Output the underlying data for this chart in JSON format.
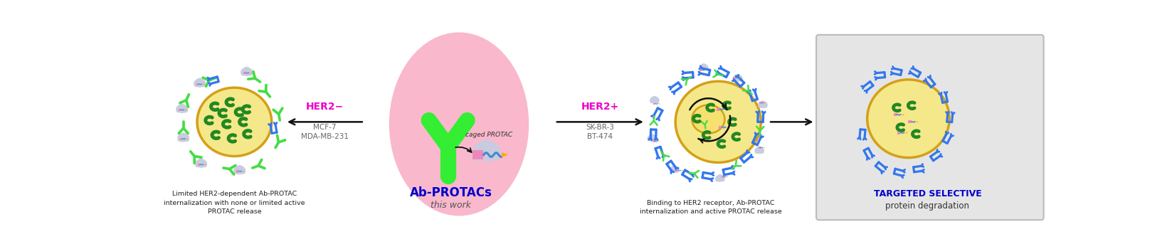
{
  "fig_width": 16.47,
  "fig_height": 3.5,
  "bg_color": "#ffffff",
  "pink_ellipse_color": "#f9c0d0",
  "cell_fill": "#f5e8a0",
  "cell_edge": "#d4a017",
  "ab_green": "#44dd44",
  "receptor_blue": "#3377ee",
  "protein_green": "#228822",
  "protac_pink": "#ee88bb",
  "protac_orange": "#ffaa00",
  "arrow_dark": "#111111",
  "her2_magenta": "#ee00cc",
  "label_blue": "#0000cc",
  "box_bg": "#e5e5e5",
  "box_edge": "#bbbbbb",
  "gray_cloud": "#c8cce0",
  "wave_blue": "#4488cc",
  "center_label": "Ab-PROTACs",
  "center_sublabel": "this work",
  "left_arrow_label": "HER2−",
  "left_arrow_sub1": "MCF-7",
  "left_arrow_sub2": "MDA-MB-231",
  "right_arrow_label": "HER2+",
  "right_arrow_sub1": "SK-BR-3",
  "right_arrow_sub2": "BT-474",
  "bottom_left_text": "Limited HER2-dependent Ab-PROTAC\ninternalization with none or limited active\nPROTAC release",
  "bottom_right_text": "Binding to HER2 receptor, Ab-PROTAC\ninternalization and active PROTAC release",
  "box_title": "TARGETED SELECTIVE",
  "box_subtitle": "protein degradation",
  "caged_label": "caged PROTAC"
}
